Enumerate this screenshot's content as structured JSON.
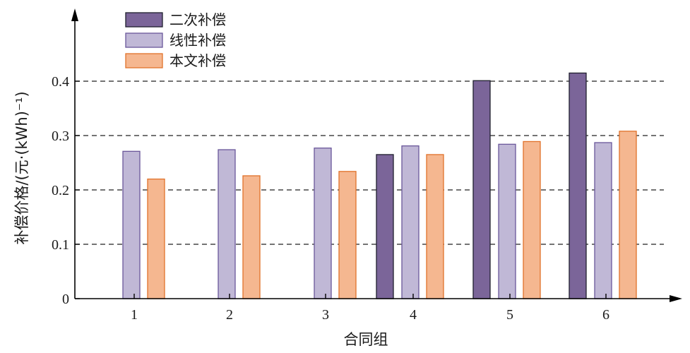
{
  "chart_data": {
    "type": "bar",
    "title": "",
    "xlabel": "合同组",
    "ylabel": "补偿价格/(元·(kWh)⁻¹)",
    "categories": [
      "1",
      "2",
      "3",
      "4",
      "5",
      "6"
    ],
    "ylim": [
      0,
      0.45
    ],
    "yticks": [
      0,
      0.1,
      0.2,
      0.3,
      0.4
    ],
    "ytick_labels": [
      "0",
      "0.1",
      "0.2",
      "0.3",
      "0.4"
    ],
    "grid": "dashed horizontal at 0.1, 0.2, 0.3, 0.4",
    "legend_position": "top-left",
    "series": [
      {
        "name": "二次补偿",
        "color": "#7b6599",
        "values": [
          null,
          null,
          null,
          0.265,
          0.401,
          0.415
        ]
      },
      {
        "name": "线性补偿",
        "color": "#c0b8d6",
        "values": [
          0.271,
          0.274,
          0.277,
          0.281,
          0.284,
          0.287
        ]
      },
      {
        "name": "本文补偿",
        "color": "#f5b790",
        "values": [
          0.22,
          0.226,
          0.234,
          0.265,
          0.289,
          0.308
        ]
      }
    ],
    "edge_colors": [
      "#1f1f2e",
      "#6a579a",
      "#e0722b"
    ]
  }
}
